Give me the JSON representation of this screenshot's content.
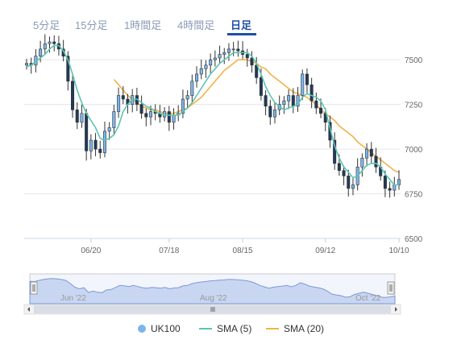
{
  "tabs": [
    {
      "label": "5分足",
      "active": false
    },
    {
      "label": "15分足",
      "active": false
    },
    {
      "label": "1時間足",
      "active": false
    },
    {
      "label": "4時間足",
      "active": false
    },
    {
      "label": "日足",
      "active": true
    }
  ],
  "colors": {
    "up": "#7cb5ec",
    "down": "#1f3a5a",
    "wick": "#333333",
    "sma5": "#5cc5b3",
    "sma20": "#f2b24a",
    "navigator_fill": "#c9d6f2",
    "navigator_line": "#7a9ad6"
  },
  "chart_data": {
    "type": "candlestick",
    "x_tick_labels": [
      "06/20",
      "07/18",
      "08/15",
      "09/12",
      "10/10"
    ],
    "y_tick_labels": [
      "7500",
      "7250",
      "7000",
      "6750",
      "6500"
    ],
    "ylim": [
      6500,
      7600
    ],
    "series": [
      {
        "name": "UK100",
        "type": "candlestick",
        "values_close": [
          7480,
          7470,
          7520,
          7560,
          7590,
          7600,
          7590,
          7560,
          7520,
          7380,
          7220,
          7150,
          7200,
          6990,
          7050,
          7000,
          6980,
          7100,
          7120,
          7210,
          7300,
          7280,
          7250,
          7300,
          7250,
          7200,
          7180,
          7210,
          7200,
          7180,
          7210,
          7150,
          7190,
          7200,
          7280,
          7300,
          7380,
          7420,
          7450,
          7470,
          7500,
          7510,
          7530,
          7540,
          7560,
          7560,
          7550,
          7530,
          7510,
          7470,
          7400,
          7300,
          7240,
          7180,
          7220,
          7250,
          7270,
          7300,
          7240,
          7300,
          7420,
          7360,
          7270,
          7230,
          7200,
          7150,
          7050,
          6920,
          6880,
          6850,
          6780,
          6800,
          6900,
          6950,
          7000,
          6960,
          6900,
          6850,
          6780,
          6770,
          6800,
          6830
        ]
      },
      {
        "name": "SMA (5)",
        "type": "line",
        "values": [
          7460,
          7470,
          7490,
          7510,
          7530,
          7560,
          7580,
          7580,
          7550,
          7500,
          7420,
          7330,
          7260,
          7200,
          7160,
          7120,
          7060,
          7050,
          7060,
          7080,
          7130,
          7210,
          7250,
          7280,
          7280,
          7260,
          7240,
          7230,
          7210,
          7200,
          7190,
          7190,
          7190,
          7190,
          7210,
          7230,
          7260,
          7300,
          7340,
          7380,
          7420,
          7450,
          7480,
          7500,
          7520,
          7540,
          7540,
          7540,
          7540,
          7520,
          7480,
          7420,
          7350,
          7300,
          7260,
          7240,
          7220,
          7230,
          7240,
          7250,
          7290,
          7310,
          7300,
          7290,
          7270,
          7220,
          7120,
          7020,
          6950,
          6900,
          6870,
          6840,
          6850,
          6880,
          6910,
          6920,
          6920,
          6900,
          6860,
          6830,
          6800,
          6800
        ]
      },
      {
        "name": "SMA (20)",
        "type": "line",
        "start_index": 19,
        "values": [
          7390,
          7360,
          7330,
          7300,
          7280,
          7260,
          7240,
          7230,
          7220,
          7220,
          7210,
          7200,
          7200,
          7200,
          7210,
          7220,
          7230,
          7250,
          7270,
          7290,
          7320,
          7350,
          7380,
          7410,
          7440,
          7460,
          7480,
          7500,
          7500,
          7500,
          7490,
          7480,
          7460,
          7450,
          7420,
          7400,
          7380,
          7360,
          7340,
          7320,
          7310,
          7300,
          7290,
          7270,
          7250,
          7220,
          7200,
          7180,
          7160,
          7130,
          7110,
          7090,
          7070,
          7040,
          7020,
          7000,
          6980,
          6960,
          6940,
          6920,
          6900,
          6880,
          6870
        ]
      }
    ],
    "navigator": {
      "labels": [
        "Jun '22",
        "Aug '22",
        "Oct '22"
      ]
    },
    "legend_position": "bottom"
  }
}
